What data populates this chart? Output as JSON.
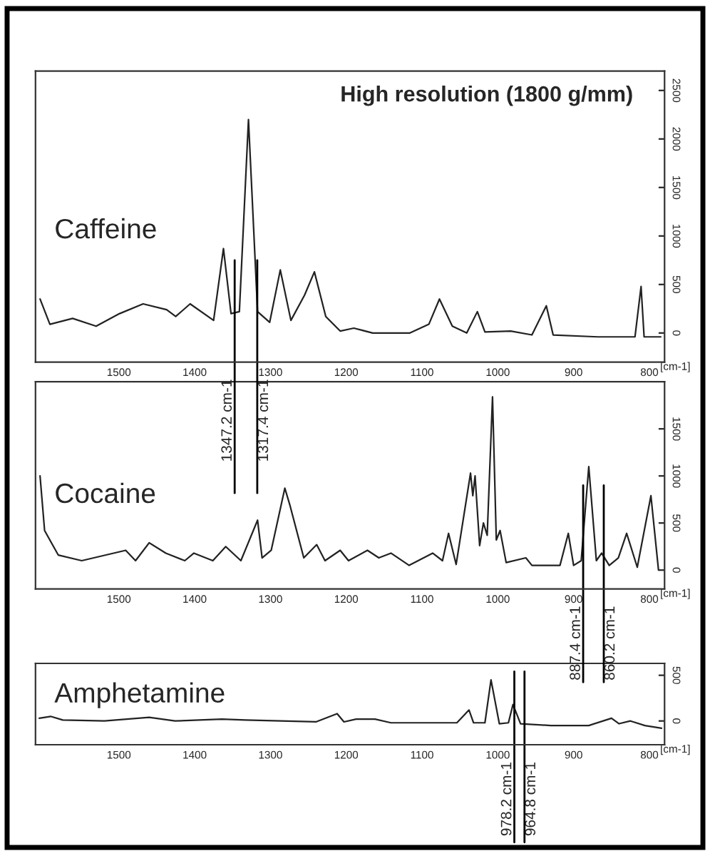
{
  "chart_data": [
    {
      "type": "line",
      "title": "High resolution (1800 g/mm)",
      "x": [
        1604,
        1591,
        1561,
        1530,
        1499,
        1468,
        1437,
        1425,
        1406,
        1375,
        1362,
        1352,
        1341,
        1329,
        1317,
        1301,
        1287,
        1273,
        1255,
        1242,
        1227,
        1208,
        1190,
        1165,
        1116,
        1091,
        1077,
        1060,
        1041,
        1027,
        1017,
        983,
        955,
        936,
        927,
        868,
        819,
        811,
        807,
        785
      ],
      "series": [
        {
          "name": "Caffeine",
          "color": "#222222",
          "values": [
            350,
            90,
            150,
            70,
            200,
            300,
            240,
            170,
            300,
            130,
            870,
            200,
            220,
            2200,
            220,
            110,
            650,
            130,
            390,
            630,
            170,
            20,
            50,
            0,
            0,
            90,
            350,
            70,
            0,
            220,
            10,
            20,
            -20,
            280,
            -20,
            -40,
            -40,
            480,
            -40,
            -40
          ]
        }
      ],
      "xlim": [
        1610,
        780
      ],
      "xticks": [
        1500,
        1400,
        1300,
        1200,
        1100,
        1000,
        900,
        800
      ],
      "xlabel": "[cm-1]",
      "ylim": [
        -300,
        2700
      ],
      "yticks": [
        0,
        500,
        1000,
        1500,
        2000,
        2500
      ],
      "ref_lines": [
        {
          "axis": "x",
          "value": 1347.2,
          "label": "1347.2 cm-1"
        },
        {
          "axis": "x",
          "value": 1317.4,
          "label": "1317.4 cm-1"
        }
      ]
    },
    {
      "type": "line",
      "x": [
        1604,
        1598,
        1580,
        1549,
        1491,
        1478,
        1460,
        1438,
        1413,
        1401,
        1376,
        1359,
        1339,
        1317,
        1311,
        1299,
        1281,
        1274,
        1256,
        1239,
        1228,
        1208,
        1197,
        1172,
        1157,
        1141,
        1117,
        1086,
        1073,
        1065,
        1055,
        1036,
        1033,
        1030,
        1024,
        1019,
        1014,
        1007,
        1002,
        997,
        989,
        963,
        955,
        918,
        907,
        900,
        890,
        880,
        870,
        863,
        853,
        841,
        830,
        816,
        798,
        788
      ],
      "series": [
        {
          "name": "Cocaine",
          "color": "#222222",
          "values": [
            1000,
            420,
            160,
            100,
            210,
            100,
            290,
            180,
            100,
            180,
            100,
            250,
            100,
            530,
            130,
            210,
            870,
            680,
            130,
            270,
            100,
            210,
            100,
            210,
            130,
            180,
            50,
            180,
            100,
            390,
            60,
            1030,
            790,
            1000,
            260,
            500,
            370,
            1840,
            320,
            420,
            80,
            130,
            50,
            50,
            390,
            50,
            100,
            1100,
            100,
            180,
            50,
            130,
            390,
            30,
            790,
            0
          ]
        }
      ],
      "xlim": [
        1610,
        780
      ],
      "xticks": [
        1500,
        1400,
        1300,
        1200,
        1100,
        1000,
        900,
        800
      ],
      "xlabel": "[cm-1]",
      "ylim": [
        -200,
        2000
      ],
      "yticks": [
        0,
        500,
        1000,
        1500
      ],
      "ref_lines": [
        {
          "axis": "x",
          "value": 887.4,
          "label": "887.4 cm-1"
        },
        {
          "axis": "x",
          "value": 860.2,
          "label": "860.2 cm-1"
        }
      ]
    },
    {
      "type": "line",
      "x": [
        1605,
        1590,
        1574,
        1519,
        1460,
        1426,
        1364,
        1333,
        1240,
        1212,
        1203,
        1187,
        1162,
        1141,
        1054,
        1038,
        1032,
        1017,
        1009,
        998,
        986,
        980,
        970,
        930,
        880,
        850,
        840,
        825,
        806,
        784
      ],
      "series": [
        {
          "name": "Amphetamine",
          "color": "#222222",
          "values": [
            30,
            50,
            10,
            0,
            40,
            0,
            20,
            10,
            -10,
            80,
            -10,
            20,
            20,
            -20,
            -20,
            120,
            -20,
            -20,
            450,
            -30,
            -20,
            180,
            -30,
            -50,
            -50,
            30,
            -30,
            0,
            -50,
            -80
          ]
        }
      ],
      "xlim": [
        1610,
        780
      ],
      "xticks": [
        1500,
        1400,
        1300,
        1200,
        1100,
        1000,
        900,
        800
      ],
      "xlabel": "[cm-1]",
      "ylim": [
        -260,
        630
      ],
      "yticks": [
        0,
        500
      ],
      "ref_lines": [
        {
          "axis": "x",
          "value": 978.2,
          "label": "978.2 cm-1"
        },
        {
          "axis": "x",
          "value": 964.8,
          "label": "964.8 cm-1"
        }
      ]
    }
  ]
}
